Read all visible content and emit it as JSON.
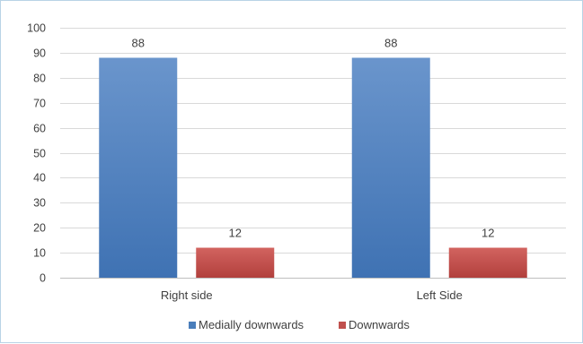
{
  "chart_data": {
    "type": "bar",
    "title": "",
    "xlabel": "",
    "ylabel": "",
    "categories": [
      "Right side",
      "Left Side"
    ],
    "series": [
      {
        "name": "Medially downwards",
        "values": [
          88,
          88
        ],
        "color": "#4a7ebb"
      },
      {
        "name": "Downwards",
        "values": [
          12,
          12
        ],
        "color": "#c0504d"
      }
    ],
    "ylim": [
      0,
      100
    ],
    "yticks": [
      0,
      10,
      20,
      30,
      40,
      50,
      60,
      70,
      80,
      90,
      100
    ],
    "grid": true,
    "data_labels": true,
    "legend_position": "bottom"
  }
}
